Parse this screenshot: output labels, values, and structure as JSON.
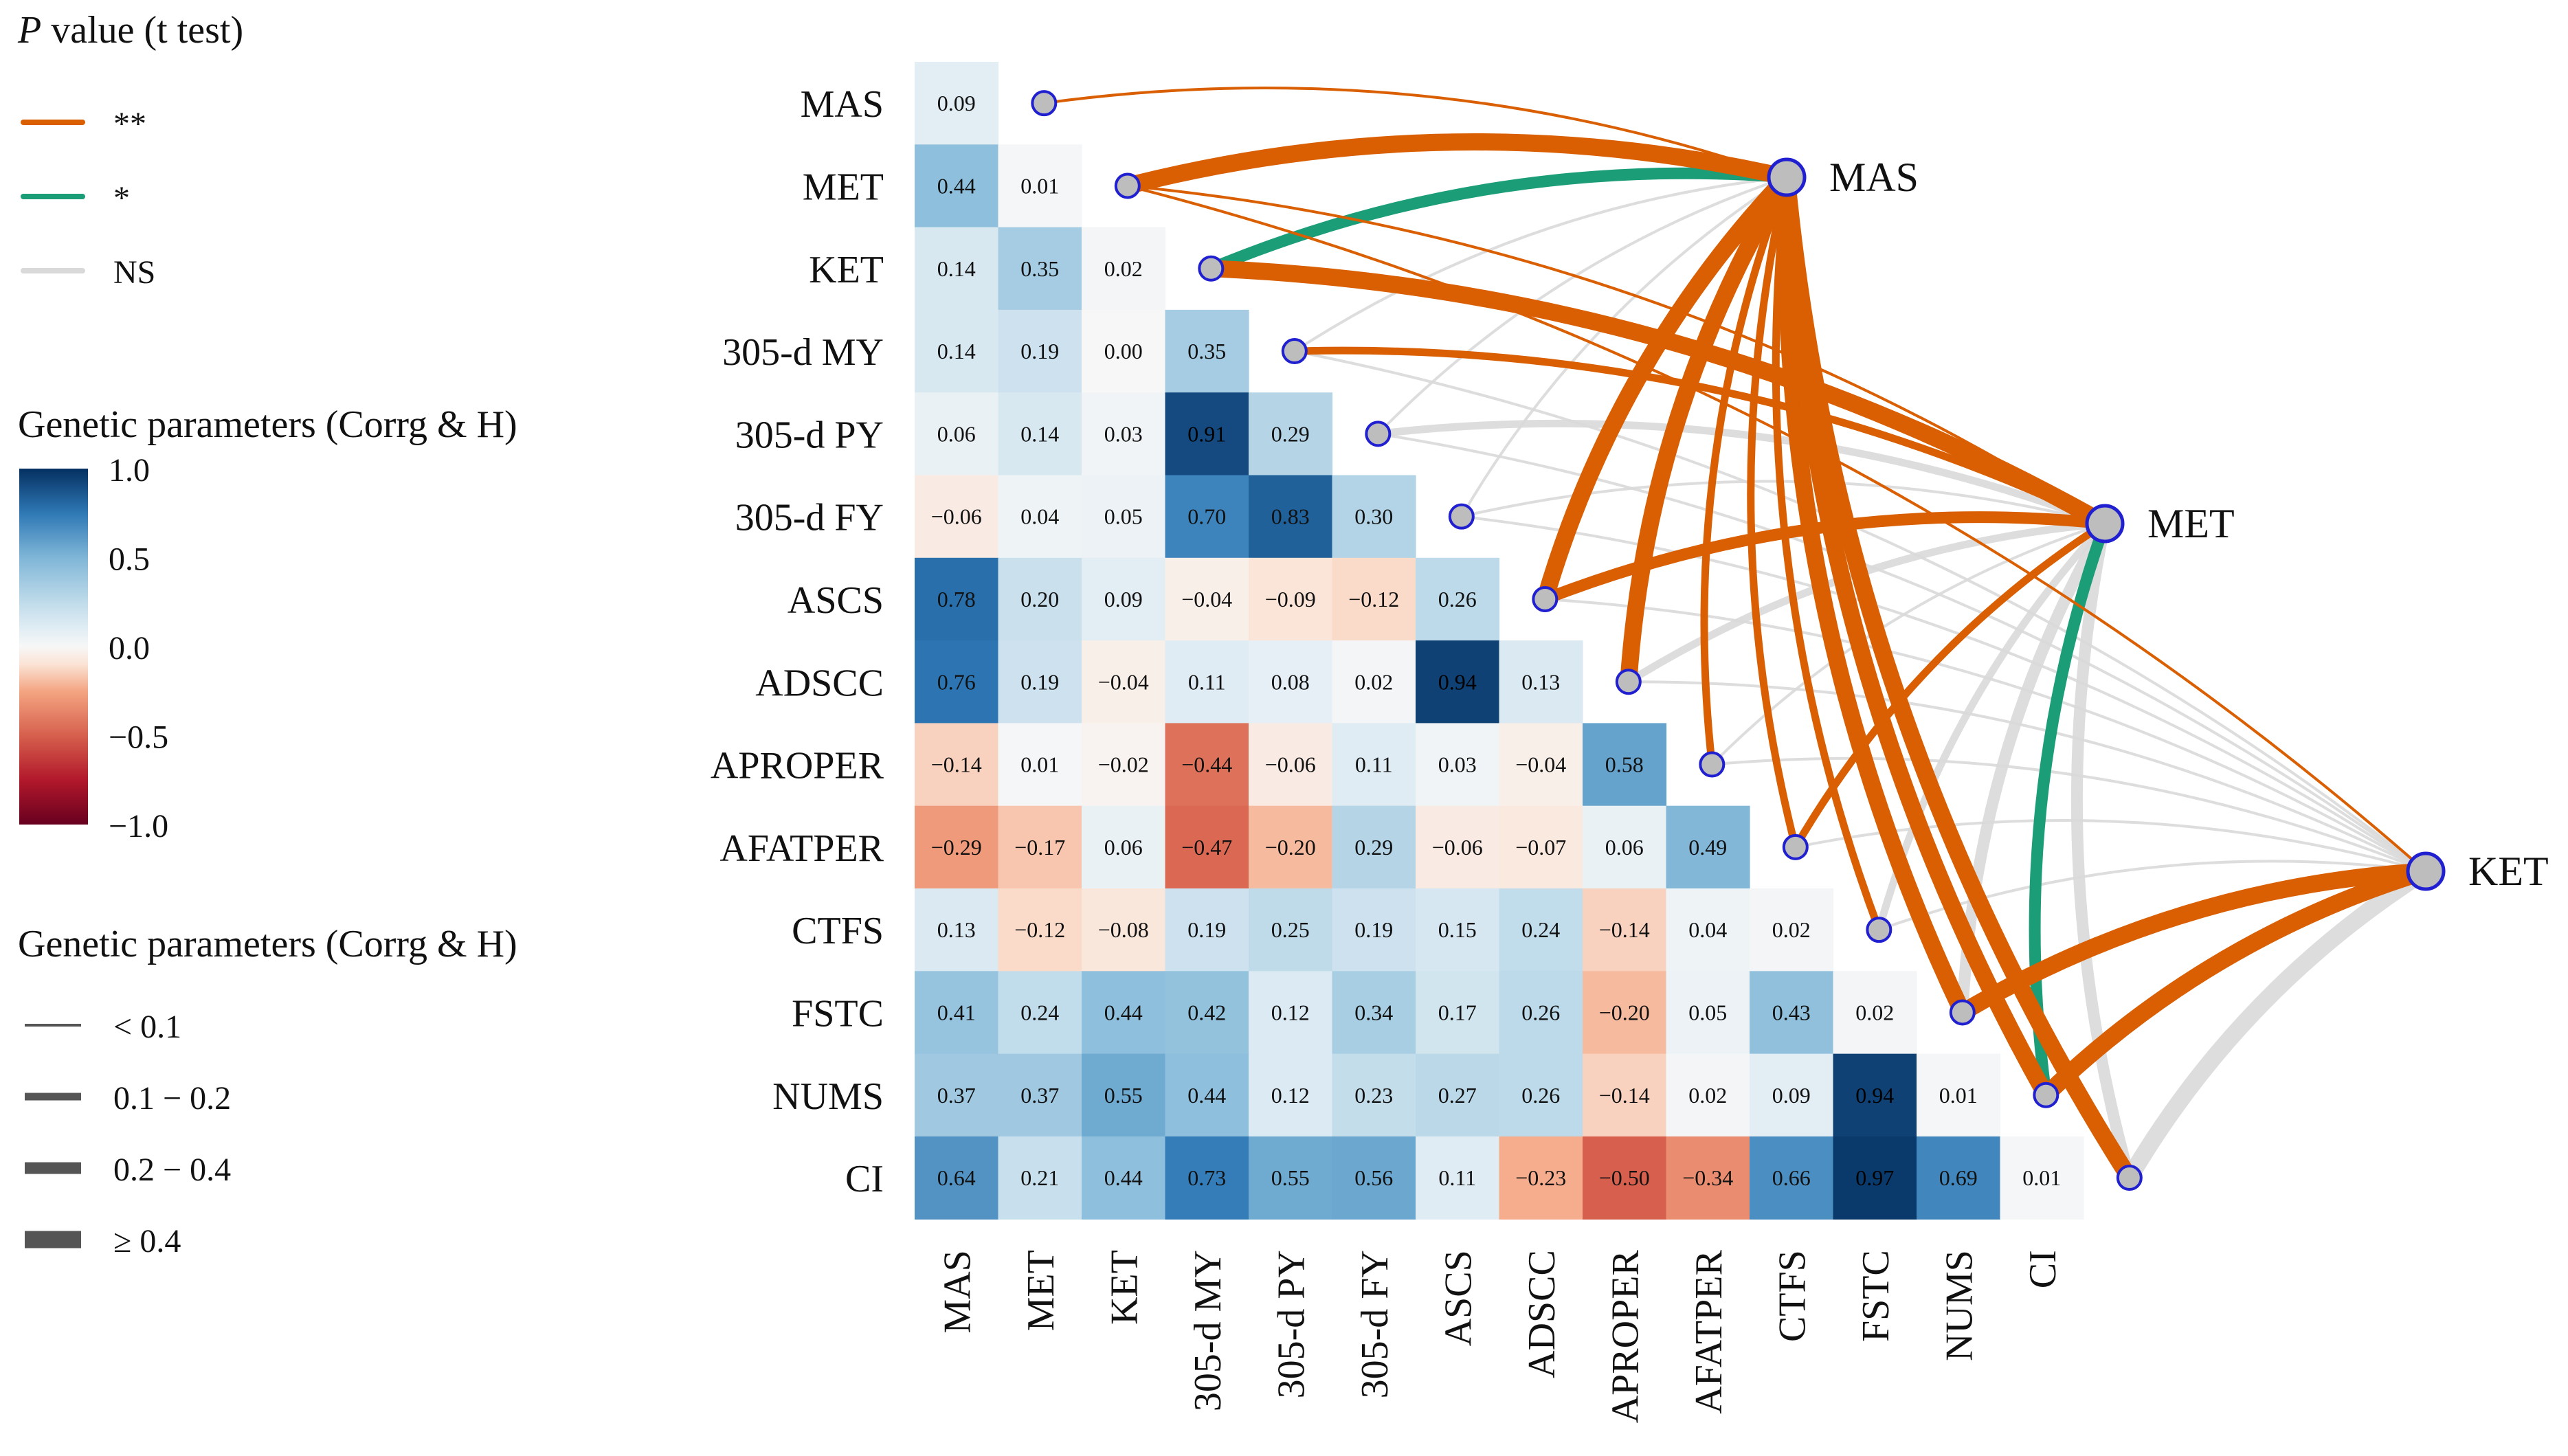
{
  "chart_data": {
    "type": "heatmap",
    "traits": [
      "MAS",
      "MET",
      "KET",
      "305-d MY",
      "305-d PY",
      "305-d FY",
      "ASCS",
      "ADSCC",
      "APROPER",
      "AFATPER",
      "CTFS",
      "FSTC",
      "NUMS",
      "CI"
    ],
    "matrix": [
      [
        0.09
      ],
      [
        0.44,
        0.01
      ],
      [
        0.14,
        0.35,
        0.02
      ],
      [
        0.14,
        0.19,
        0.0,
        0.35
      ],
      [
        0.06,
        0.14,
        0.03,
        0.91,
        0.29
      ],
      [
        -0.06,
        0.04,
        0.05,
        0.7,
        0.83,
        0.3
      ],
      [
        0.78,
        0.2,
        0.09,
        -0.04,
        -0.09,
        -0.12,
        0.26
      ],
      [
        0.76,
        0.19,
        -0.04,
        0.11,
        0.08,
        0.02,
        0.94,
        0.13
      ],
      [
        -0.14,
        0.01,
        -0.02,
        -0.44,
        -0.06,
        0.11,
        0.03,
        -0.04,
        0.58
      ],
      [
        -0.29,
        -0.17,
        0.06,
        -0.47,
        -0.2,
        0.29,
        -0.06,
        -0.07,
        0.06,
        0.49
      ],
      [
        0.13,
        -0.12,
        -0.08,
        0.19,
        0.25,
        0.19,
        0.15,
        0.24,
        -0.14,
        0.04,
        0.02
      ],
      [
        0.41,
        0.24,
        0.44,
        0.42,
        0.12,
        0.34,
        0.17,
        0.26,
        -0.2,
        0.05,
        0.43,
        0.02
      ],
      [
        0.37,
        0.37,
        0.55,
        0.44,
        0.12,
        0.23,
        0.27,
        0.26,
        -0.14,
        0.02,
        0.09,
        0.94,
        0.01
      ],
      [
        0.64,
        0.21,
        0.44,
        0.73,
        0.55,
        0.56,
        0.11,
        -0.23,
        -0.5,
        -0.34,
        0.66,
        0.97,
        0.69,
        0.01
      ]
    ],
    "matrix_display": [
      [
        "0.09"
      ],
      [
        "0.44",
        "0.01"
      ],
      [
        "0.14",
        "0.35",
        "0.02"
      ],
      [
        "0.14",
        "0.19",
        "0.00",
        "0.35"
      ],
      [
        "0.06",
        "0.14",
        "0.03",
        "0.91",
        "0.29"
      ],
      [
        "−0.06",
        "0.04",
        "0.05",
        "0.70",
        "0.83",
        "0.30"
      ],
      [
        "0.78",
        "0.20",
        "0.09",
        "−0.04",
        "−0.09",
        "−0.12",
        "0.26"
      ],
      [
        "0.76",
        "0.19",
        "−0.04",
        "0.11",
        "0.08",
        "0.02",
        "0.94",
        "0.13"
      ],
      [
        "−0.14",
        "0.01",
        "−0.02",
        "−0.44",
        "−0.06",
        "0.11",
        "0.03",
        "−0.04",
        "0.58"
      ],
      [
        "−0.29",
        "−0.17",
        "0.06",
        "−0.47",
        "−0.20",
        "0.29",
        "−0.06",
        "−0.07",
        "0.06",
        "0.49"
      ],
      [
        "0.13",
        "−0.12",
        "−0.08",
        "0.19",
        "0.25",
        "0.19",
        "0.15",
        "0.24",
        "−0.14",
        "0.04",
        "0.02"
      ],
      [
        "0.41",
        "0.24",
        "0.44",
        "0.42",
        "0.12",
        "0.34",
        "0.17",
        "0.26",
        "−0.20",
        "0.05",
        "0.43",
        "0.02"
      ],
      [
        "0.37",
        "0.37",
        "0.55",
        "0.44",
        "0.12",
        "0.23",
        "0.27",
        "0.26",
        "−0.14",
        "0.02",
        "0.09",
        "0.94",
        "0.01"
      ],
      [
        "0.64",
        "0.21",
        "0.44",
        "0.73",
        "0.55",
        "0.56",
        "0.11",
        "−0.23",
        "−0.50",
        "−0.34",
        "0.66",
        "0.97",
        "0.69",
        "0.01"
      ]
    ],
    "color_scale": {
      "min": -1.0,
      "max": 1.0,
      "stops": [
        {
          "v": -1.0,
          "c": "#67001f"
        },
        {
          "v": -0.75,
          "c": "#b2182b"
        },
        {
          "v": -0.5,
          "c": "#d6604d"
        },
        {
          "v": -0.25,
          "c": "#f4a582"
        },
        {
          "v": -0.1,
          "c": "#fbe3d5"
        },
        {
          "v": 0.0,
          "c": "#f7f7f7"
        },
        {
          "v": 0.1,
          "c": "#e1edf4"
        },
        {
          "v": 0.25,
          "c": "#bfdbea"
        },
        {
          "v": 0.5,
          "c": "#7fb6d7"
        },
        {
          "v": 0.75,
          "c": "#2e78b5"
        },
        {
          "v": 1.0,
          "c": "#053061"
        }
      ]
    },
    "hubs": [
      "MAS",
      "MET",
      "KET"
    ],
    "links": [
      {
        "from": "MAS",
        "to": "MAS",
        "sig": "**",
        "w": 1
      },
      {
        "from": "MAS",
        "to": "MET",
        "sig": "**",
        "w": 4
      },
      {
        "from": "MAS",
        "to": "KET",
        "sig": "*",
        "w": 3
      },
      {
        "from": "MAS",
        "to": "305-d MY",
        "sig": "NS",
        "w": 1
      },
      {
        "from": "MAS",
        "to": "305-d PY",
        "sig": "NS",
        "w": 1
      },
      {
        "from": "MAS",
        "to": "305-d FY",
        "sig": "NS",
        "w": 1
      },
      {
        "from": "MAS",
        "to": "ASCS",
        "sig": "**",
        "w": 4
      },
      {
        "from": "MAS",
        "to": "ADSCC",
        "sig": "**",
        "w": 4
      },
      {
        "from": "MAS",
        "to": "APROPER",
        "sig": "**",
        "w": 2
      },
      {
        "from": "MAS",
        "to": "AFATPER",
        "sig": "**",
        "w": 2
      },
      {
        "from": "MAS",
        "to": "CTFS",
        "sig": "**",
        "w": 2
      },
      {
        "from": "MAS",
        "to": "FSTC",
        "sig": "**",
        "w": 4
      },
      {
        "from": "MAS",
        "to": "NUMS",
        "sig": "**",
        "w": 4
      },
      {
        "from": "MAS",
        "to": "CI",
        "sig": "**",
        "w": 4
      },
      {
        "from": "MET",
        "to": "MET",
        "sig": "**",
        "w": 1
      },
      {
        "from": "MET",
        "to": "KET",
        "sig": "**",
        "w": 4
      },
      {
        "from": "MET",
        "to": "305-d MY",
        "sig": "**",
        "w": 2
      },
      {
        "from": "MET",
        "to": "305-d PY",
        "sig": "NS",
        "w": 2
      },
      {
        "from": "MET",
        "to": "305-d FY",
        "sig": "NS",
        "w": 1
      },
      {
        "from": "MET",
        "to": "ASCS",
        "sig": "**",
        "w": 3
      },
      {
        "from": "MET",
        "to": "ADSCC",
        "sig": "NS",
        "w": 2
      },
      {
        "from": "MET",
        "to": "APROPER",
        "sig": "NS",
        "w": 1
      },
      {
        "from": "MET",
        "to": "AFATPER",
        "sig": "**",
        "w": 2
      },
      {
        "from": "MET",
        "to": "CTFS",
        "sig": "NS",
        "w": 2
      },
      {
        "from": "MET",
        "to": "FSTC",
        "sig": "NS",
        "w": 3
      },
      {
        "from": "MET",
        "to": "NUMS",
        "sig": "*",
        "w": 3
      },
      {
        "from": "MET",
        "to": "CI",
        "sig": "NS",
        "w": 3
      },
      {
        "from": "KET",
        "to": "MET",
        "sig": "**",
        "w": 1
      },
      {
        "from": "KET",
        "to": "305-d MY",
        "sig": "NS",
        "w": 1
      },
      {
        "from": "KET",
        "to": "305-d PY",
        "sig": "NS",
        "w": 1
      },
      {
        "from": "KET",
        "to": "305-d FY",
        "sig": "NS",
        "w": 1
      },
      {
        "from": "KET",
        "to": "ASCS",
        "sig": "NS",
        "w": 1
      },
      {
        "from": "KET",
        "to": "ADSCC",
        "sig": "NS",
        "w": 1
      },
      {
        "from": "KET",
        "to": "APROPER",
        "sig": "NS",
        "w": 1
      },
      {
        "from": "KET",
        "to": "AFATPER",
        "sig": "NS",
        "w": 1
      },
      {
        "from": "KET",
        "to": "CTFS",
        "sig": "NS",
        "w": 1
      },
      {
        "from": "KET",
        "to": "FSTC",
        "sig": "**",
        "w": 4
      },
      {
        "from": "KET",
        "to": "NUMS",
        "sig": "**",
        "w": 4
      },
      {
        "from": "KET",
        "to": "CI",
        "sig": "NS",
        "w": 4
      }
    ],
    "significance_colors": {
      "**": "#d95f02",
      "*": "#1b9e77",
      "NS": "#d9d9d9"
    }
  },
  "legend": {
    "pvalue_title_italic": "P",
    "pvalue_title_rest": " value (t test)",
    "pvalue_items": [
      {
        "label": "**",
        "color": "#d95f02"
      },
      {
        "label": "*",
        "color": "#1b9e77"
      },
      {
        "label": "NS",
        "color": "#d9d9d9"
      }
    ],
    "colorbar_title": "Genetic parameters (Corrg & H)",
    "colorbar_ticks": [
      "1.0",
      "0.5",
      "0.0",
      "−0.5",
      "−1.0"
    ],
    "colorbar_tick_values": [
      1.0,
      0.5,
      0.0,
      -0.5,
      -1.0
    ],
    "width_title": "Genetic parameters (Corrg & H)",
    "width_items": [
      {
        "label": "< 0.1",
        "w": 1
      },
      {
        "label": "0.1 − 0.2",
        "w": 2
      },
      {
        "label": "0.2 − 0.4",
        "w": 3
      },
      {
        "label": "≥ 0.4",
        "w": 4
      }
    ]
  }
}
